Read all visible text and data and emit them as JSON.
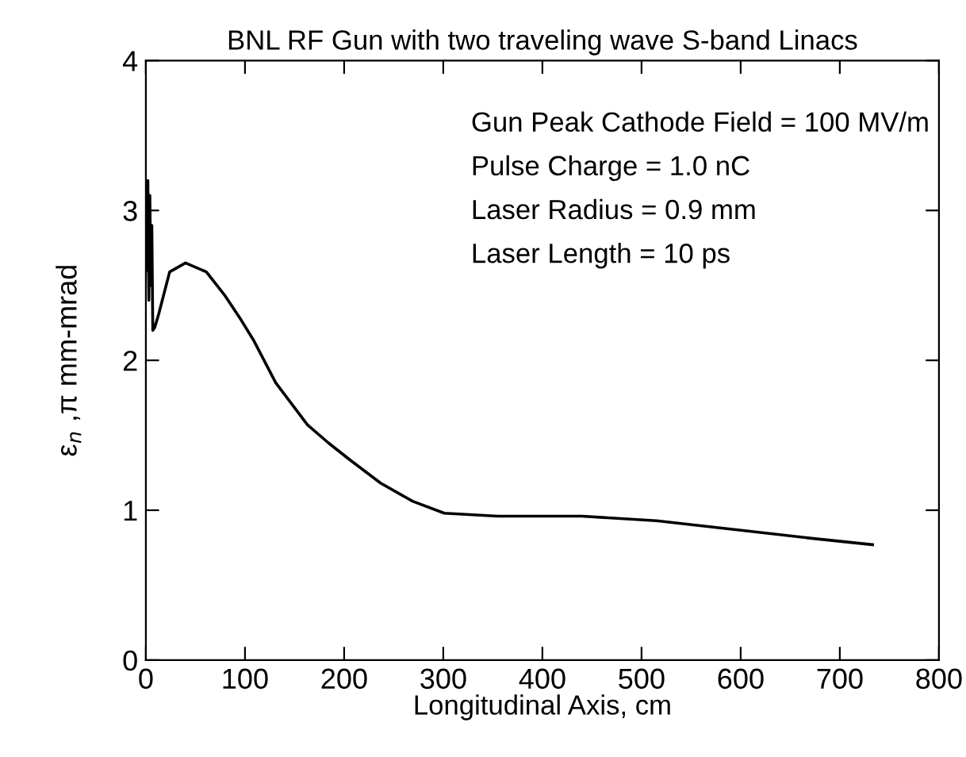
{
  "chart_data": {
    "type": "line",
    "title": "BNL RF Gun with two traveling wave S-band Linacs",
    "xlabel": "Longitudinal Axis, cm",
    "ylabel": "ε$_{n}$ ,π mm-mrad",
    "annotations": [
      "Gun Peak Cathode Field = 100 MV/m",
      "Pulse Charge = 1.0 nC",
      "Laser Radius = 0.9 mm",
      "Laser Length = 10 ps"
    ],
    "series": [
      {
        "color": "#000000",
        "x": [
          1,
          2,
          3,
          4,
          5,
          6,
          7,
          9,
          13,
          24,
          40,
          61,
          80,
          96,
          109,
          131,
          163,
          184,
          205,
          237,
          269,
          301,
          355,
          440,
          515,
          595,
          675,
          733
        ],
        "values": [
          2.6,
          3.2,
          2.4,
          3.1,
          2.5,
          2.9,
          2.2,
          2.22,
          2.31,
          2.59,
          2.65,
          2.59,
          2.43,
          2.27,
          2.13,
          1.85,
          1.57,
          1.45,
          1.34,
          1.18,
          1.06,
          0.98,
          0.96,
          0.96,
          0.93,
          0.87,
          0.81,
          0.77
        ]
      }
    ],
    "xlim": [
      0,
      800
    ],
    "xticks": [
      0,
      100,
      200,
      300,
      400,
      500,
      600,
      700,
      800
    ],
    "ylim": [
      0,
      4
    ],
    "yticks": [
      0,
      1,
      2,
      3,
      4
    ],
    "grid": false,
    "legend": false,
    "marker": "none",
    "line_style": "solid"
  }
}
